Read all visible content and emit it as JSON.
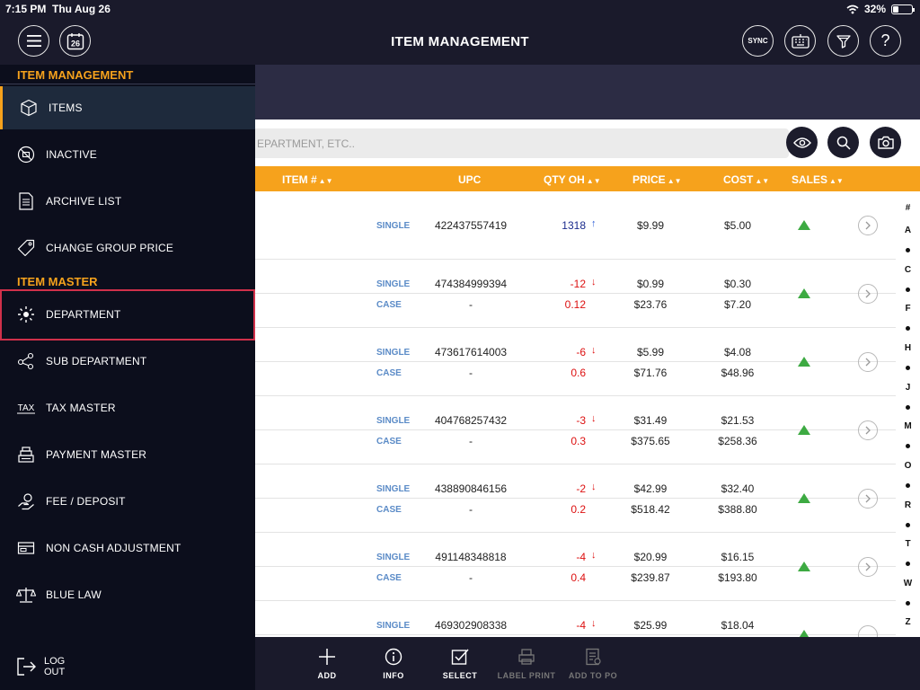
{
  "status_bar": {
    "time": "7:15 PM",
    "date": "Thu Aug 26",
    "battery": "32%"
  },
  "header": {
    "title": "ITEM MANAGEMENT",
    "calendar_day": "26",
    "sync_label": "SYNC",
    "help_label": "?"
  },
  "search": {
    "placeholder": "EPARTMENT, ETC.."
  },
  "table": {
    "headers": {
      "item": "ITEM #",
      "upc": "UPC",
      "qty": "QTY OH",
      "price": "PRICE",
      "cost": "COST",
      "sales": "SALES"
    },
    "rows": [
      {
        "lines": [
          {
            "uom": "SINGLE",
            "upc": "422437557419",
            "qty": "1318",
            "trend": "up",
            "price": "$9.99",
            "cost": "$5.00"
          }
        ]
      },
      {
        "lines": [
          {
            "uom": "SINGLE",
            "upc": "474384999394",
            "qty": "-12",
            "trend": "down",
            "price": "$0.99",
            "cost": "$0.30"
          },
          {
            "uom": "CASE",
            "upc": "-",
            "qty": "0.12",
            "price": "$23.76",
            "cost": "$7.20"
          }
        ]
      },
      {
        "lines": [
          {
            "uom": "SINGLE",
            "upc": "473617614003",
            "qty": "-6",
            "trend": "down",
            "price": "$5.99",
            "cost": "$4.08"
          },
          {
            "uom": "CASE",
            "upc": "-",
            "qty": "0.6",
            "price": "$71.76",
            "cost": "$48.96"
          }
        ]
      },
      {
        "lines": [
          {
            "uom": "SINGLE",
            "upc": "404768257432",
            "qty": "-3",
            "trend": "down",
            "price": "$31.49",
            "cost": "$21.53"
          },
          {
            "uom": "CASE",
            "upc": "-",
            "qty": "0.3",
            "price": "$375.65",
            "cost": "$258.36"
          }
        ]
      },
      {
        "lines": [
          {
            "uom": "SINGLE",
            "upc": "438890846156",
            "qty": "-2",
            "trend": "down",
            "price": "$42.99",
            "cost": "$32.40"
          },
          {
            "uom": "CASE",
            "upc": "-",
            "qty": "0.2",
            "price": "$518.42",
            "cost": "$388.80"
          }
        ]
      },
      {
        "lines": [
          {
            "uom": "SINGLE",
            "upc": "491148348818",
            "qty": "-4",
            "trend": "down",
            "price": "$20.99",
            "cost": "$16.15"
          },
          {
            "uom": "CASE",
            "upc": "-",
            "qty": "0.4",
            "price": "$239.87",
            "cost": "$193.80"
          }
        ]
      },
      {
        "lines": [
          {
            "uom": "SINGLE",
            "upc": "469302908338",
            "qty": "-4",
            "trend": "down",
            "price": "$25.99",
            "cost": "$18.04"
          }
        ]
      }
    ]
  },
  "index_letters": [
    "#",
    "A",
    "C",
    "F",
    "H",
    "J",
    "M",
    "O",
    "R",
    "T",
    "W",
    "Z"
  ],
  "toolbar": {
    "add": "ADD",
    "info": "INFO",
    "select": "SELECT",
    "label_print": "LABEL PRINT",
    "add_to_po": "ADD TO PO"
  },
  "sidebar": {
    "section_item_management": "ITEM MANAGEMENT",
    "section_item_master": "ITEM MASTER",
    "items": {
      "items": "ITEMS",
      "inactive": "INACTIVE",
      "archive_list": "ARCHIVE LIST",
      "change_group_price": "CHANGE GROUP PRICE",
      "department": "DEPARTMENT",
      "sub_department": "SUB DEPARTMENT",
      "tax_master": "TAX MASTER",
      "payment_master": "PAYMENT MASTER",
      "fee_deposit": "FEE / DEPOSIT",
      "non_cash_adjustment": "NON CASH ADJUSTMENT",
      "blue_law": "BLUE LAW"
    },
    "tax_icon_text": "TAX",
    "logout_line1": "LOG",
    "logout_line2": "OUT"
  },
  "colors": {
    "accent": "#f6a21c",
    "header_bg": "#1a1a2b",
    "sidebar_bg": "#0c0e1c",
    "sales_up": "#3daa42",
    "qty_negative": "#dd1111",
    "highlight": "#d0304a"
  }
}
